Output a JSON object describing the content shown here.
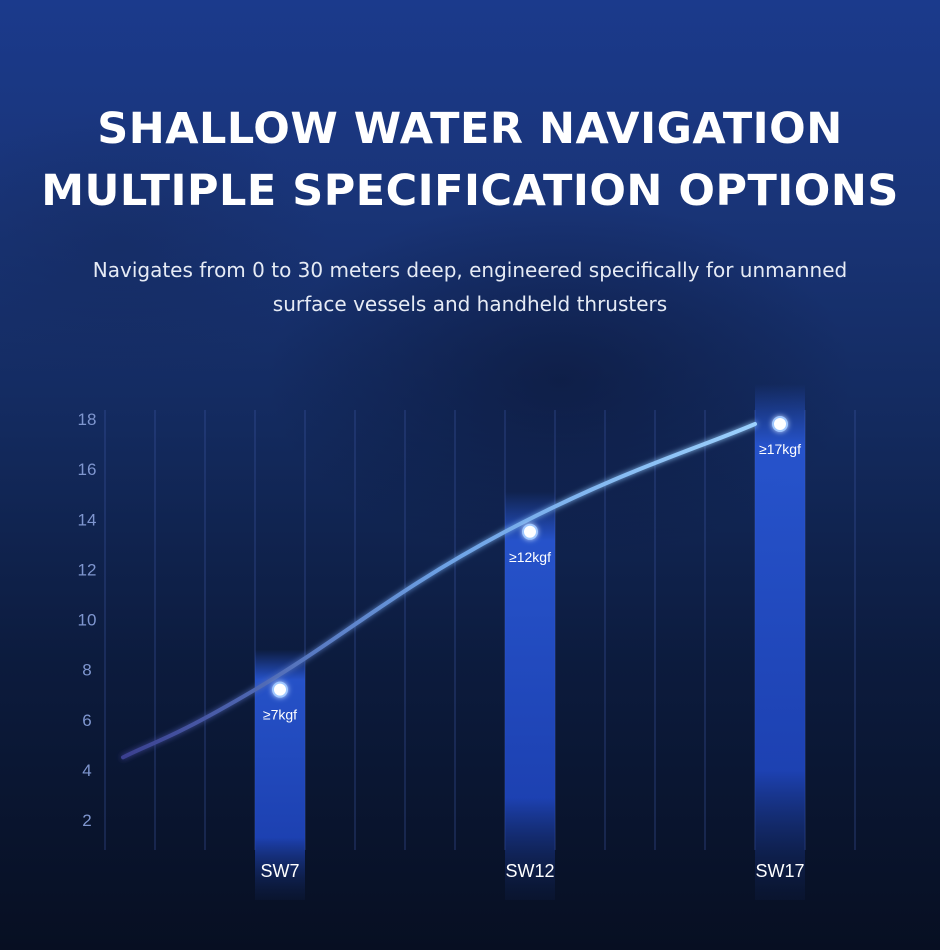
{
  "header": {
    "title_line1": "SHALLOW WATER NAVIGATION",
    "title_line2": "MULTIPLE SPECIFICATION OPTIONS",
    "subtitle_line1": "Navigates from 0 to 30 meters deep, engineered specifically for unmanned",
    "subtitle_line2": "surface vessels and handheld thrusters"
  },
  "chart_data": {
    "type": "bar",
    "title": "",
    "xlabel": "",
    "ylabel": "",
    "categories": [
      "SW7",
      "SW12",
      "SW17"
    ],
    "values": [
      7.2,
      13.5,
      17.8
    ],
    "data_labels": [
      "≥7kgf",
      "≥12kgf",
      "≥17kgf"
    ],
    "yticks": [
      2,
      4,
      6,
      8,
      10,
      12,
      14,
      16,
      18
    ],
    "ylim": [
      0,
      18.1
    ],
    "grid": "vertical",
    "trend_line": {
      "type": "line",
      "points": [
        {
          "x": 0,
          "y": 4.5
        },
        {
          "x": 3,
          "y": 7.2
        },
        {
          "x": 8,
          "y": 13.5
        },
        {
          "x": 13,
          "y": 17.8
        }
      ]
    },
    "colors": {
      "bar": "#2a5be0",
      "line_start": "#3a3f8f",
      "line_end": "#9fd4ff",
      "grid": "#3f5aa8",
      "tick_label": "#7f96cf",
      "marker": "#ffffff"
    }
  }
}
